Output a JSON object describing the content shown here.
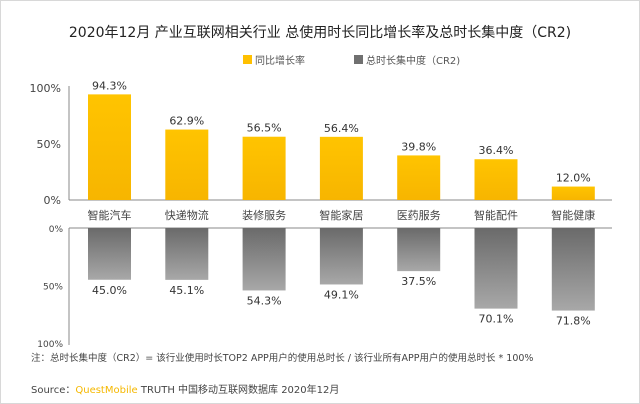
{
  "chart_data": [
    {
      "type": "bar",
      "title": "2020年12月 产业互联网相关行业 总使用时长同比增长率及总时长集中度（CR2)",
      "categories": [
        "智能汽车",
        "快递物流",
        "装修服务",
        "智能家居",
        "医药服务",
        "智能配件",
        "智能健康"
      ],
      "series": [
        {
          "name": "同比增长率",
          "values": [
            94.3,
            62.9,
            56.5,
            56.4,
            39.8,
            36.4,
            12.0
          ],
          "labels": [
            "94.3%",
            "62.9%",
            "56.5%",
            "56.4%",
            "39.8%",
            "36.4%",
            "12.0%"
          ],
          "color": "#ffc000"
        }
      ],
      "yticks": [
        "0%",
        "50%",
        "100%"
      ],
      "ylim": [
        0,
        100
      ],
      "legend": "top",
      "grid": false
    },
    {
      "type": "bar",
      "orientation": "downward",
      "series": [
        {
          "name": "总时长集中度（CR2)",
          "values": [
            45.0,
            45.1,
            54.3,
            49.1,
            37.5,
            70.1,
            71.8
          ],
          "labels": [
            "45.0%",
            "45.1%",
            "54.3%",
            "49.1%",
            "37.5%",
            "70.1%",
            "71.8%"
          ],
          "color": "#7f7f7f"
        }
      ],
      "yticks": [
        "0%",
        "50%",
        "100%"
      ],
      "ylim": [
        0,
        100
      ],
      "grid": false
    }
  ],
  "note": "注：总时长集中度（CR2）= 该行业使用时长TOP2 APP用户的使用总时长 / 该行业所有APP用户的使用总时长 * 100%",
  "source": {
    "prefix": "Source：",
    "brand": "QuestMobile",
    "rest": " TRUTH 中国移动互联网数据库 2020年12月"
  }
}
